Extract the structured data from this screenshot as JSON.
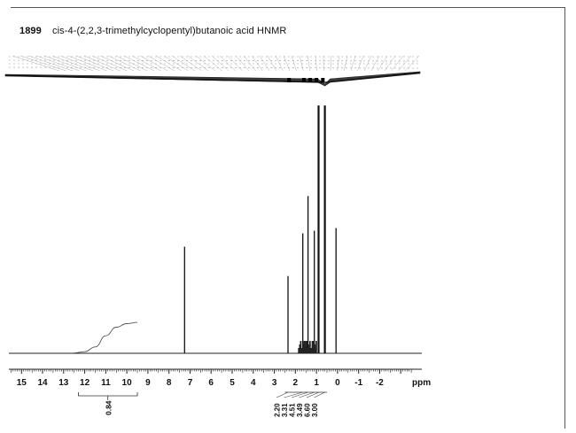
{
  "header": {
    "spectrum_id": "1899",
    "title": "cis-4-(2,2,3-trimethylcyclopentyl)butanoic acid HNMR"
  },
  "chart_data": {
    "type": "line",
    "title": "cis-4-(2,2,3-trimethylcyclopentyl)butanoic acid HNMR",
    "xlabel": "ppm",
    "ylabel": "",
    "x_reversed": true,
    "xlim": [
      15.6,
      -4.0
    ],
    "ylim": [
      0,
      1
    ],
    "x_ticks": [
      15,
      14,
      13,
      12,
      11,
      10,
      9,
      8,
      7,
      6,
      5,
      4,
      3,
      2,
      1,
      0,
      -1,
      -2
    ],
    "x_tick_labels": [
      "15",
      "14",
      "13",
      "12",
      "11",
      "10",
      "9",
      "8",
      "7",
      "6",
      "5",
      "4",
      "3",
      "2",
      "1",
      "0",
      "-1",
      "-2"
    ],
    "peaks": [
      {
        "ppm": 7.26,
        "intensity": 0.4
      },
      {
        "ppm": 2.35,
        "intensity": 0.29
      },
      {
        "ppm": 1.65,
        "intensity": 0.45
      },
      {
        "ppm": 1.4,
        "intensity": 0.59
      },
      {
        "ppm": 1.1,
        "intensity": 0.46
      },
      {
        "ppm": 0.9,
        "intensity": 0.93
      },
      {
        "ppm": 0.6,
        "intensity": 0.93
      },
      {
        "ppm": 0.07,
        "intensity": 0.47
      }
    ],
    "integrals": [
      {
        "region_ppm": [
          12.3,
          9.5
        ],
        "value": "0.84"
      },
      {
        "region_ppm": [
          2.5,
          2.2
        ],
        "value": "2.20"
      },
      {
        "region_ppm": [
          1.8,
          1.5
        ],
        "value": "3.31"
      },
      {
        "region_ppm": [
          1.5,
          1.3
        ],
        "value": "4.51"
      },
      {
        "region_ppm": [
          1.2,
          1.0
        ],
        "value": "3.49"
      },
      {
        "region_ppm": [
          0.95,
          0.8
        ],
        "value": "6.60"
      },
      {
        "region_ppm": [
          0.7,
          0.5
        ],
        "value": "3.00"
      }
    ],
    "integral_curve": [
      {
        "ppm": 12.6,
        "level": 0.0
      },
      {
        "ppm": 12.0,
        "level": 0.05
      },
      {
        "ppm": 11.5,
        "level": 0.2
      },
      {
        "ppm": 11.0,
        "level": 0.55
      },
      {
        "ppm": 10.5,
        "level": 0.82
      },
      {
        "ppm": 10.0,
        "level": 0.93
      },
      {
        "ppm": 9.5,
        "level": 0.97
      }
    ]
  }
}
